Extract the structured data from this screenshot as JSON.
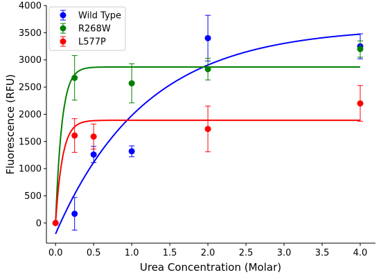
{
  "chart_data": {
    "type": "scatter",
    "xlabel": "Urea Concentration (Molar)",
    "ylabel": "Fluorescence (RFU)",
    "xlim": [
      -0.12,
      4.2
    ],
    "ylim": [
      -370,
      4000
    ],
    "x_ticks": [
      "0.0",
      "0.5",
      "1.0",
      "1.5",
      "2.0",
      "2.5",
      "3.0",
      "3.5",
      "4.0"
    ],
    "y_ticks": [
      "0",
      "500",
      "1000",
      "1500",
      "2000",
      "2500",
      "3000",
      "3500",
      "4000"
    ],
    "grid": false,
    "legend_position": "top-left",
    "series": [
      {
        "name": "Wild Type",
        "color": "#0000ff",
        "points": [
          {
            "x": 0.0,
            "y": 0,
            "err": 0
          },
          {
            "x": 0.25,
            "y": 170,
            "err": 300
          },
          {
            "x": 0.5,
            "y": 1260,
            "err": 150
          },
          {
            "x": 1.0,
            "y": 1320,
            "err": 100
          },
          {
            "x": 2.0,
            "y": 3400,
            "err": 420
          },
          {
            "x": 4.0,
            "y": 3250,
            "err": 230
          }
        ],
        "fit": {
          "model": "exponential_rise",
          "start": -200,
          "plateau": 3600,
          "rate": 0.85
        }
      },
      {
        "name": "R268W",
        "color": "#008000",
        "points": [
          {
            "x": 0.0,
            "y": 0,
            "err": 0
          },
          {
            "x": 0.25,
            "y": 2670,
            "err": 410
          },
          {
            "x": 1.0,
            "y": 2570,
            "err": 360
          },
          {
            "x": 2.0,
            "y": 2830,
            "err": 200
          },
          {
            "x": 4.0,
            "y": 3200,
            "err": 150
          }
        ],
        "fit": {
          "model": "exponential_rise",
          "start": 0,
          "plateau": 2870,
          "rate": 12
        }
      },
      {
        "name": "L577P",
        "color": "#ff0000",
        "points": [
          {
            "x": 0.0,
            "y": 0,
            "err": 0
          },
          {
            "x": 0.25,
            "y": 1610,
            "err": 310
          },
          {
            "x": 0.5,
            "y": 1590,
            "err": 230
          },
          {
            "x": 2.0,
            "y": 1730,
            "err": 420
          },
          {
            "x": 4.0,
            "y": 2200,
            "err": 330
          }
        ],
        "fit": {
          "model": "exponential_rise",
          "start": 0,
          "plateau": 1890,
          "rate": 11
        }
      }
    ]
  }
}
